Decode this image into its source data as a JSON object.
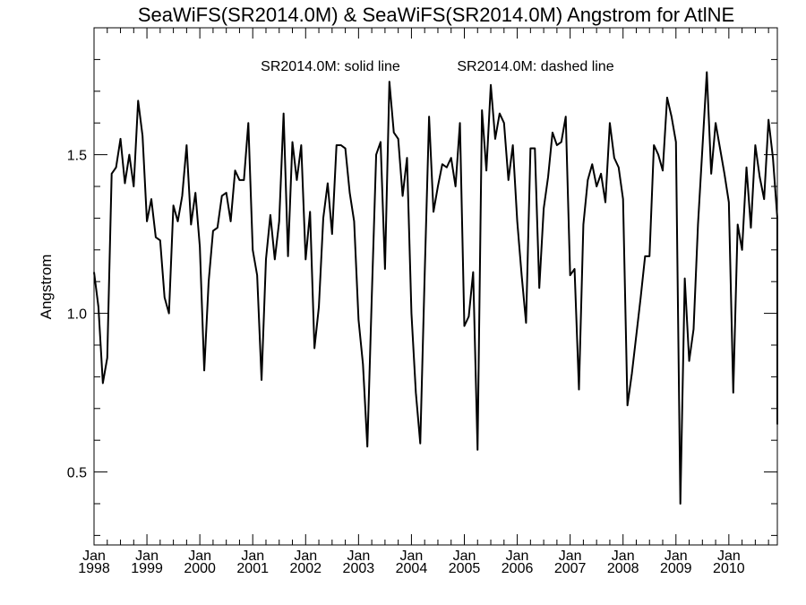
{
  "chart_data": {
    "type": "line",
    "title": "SeaWiFS(SR2014.0M) & SeaWiFS(SR2014.0M)  Angstrom for AtlNE",
    "subtitle_left": "SR2014.0M: solid line",
    "subtitle_right": "SR2014.0M: dashed line",
    "ylabel": "Angstrom",
    "xlabel": "",
    "xlim": [
      "1998-01",
      "2010-12"
    ],
    "ylim": [
      0.27,
      1.9
    ],
    "yticks": [
      0.5,
      1.0,
      1.5
    ],
    "ytick_labels": [
      "0.5",
      "1.0",
      "1.5"
    ],
    "xticks": [
      {
        "month": "Jan",
        "year": "1998"
      },
      {
        "month": "Jan",
        "year": "1999"
      },
      {
        "month": "Jan",
        "year": "2000"
      },
      {
        "month": "Jan",
        "year": "2001"
      },
      {
        "month": "Jan",
        "year": "2002"
      },
      {
        "month": "Jan",
        "year": "2003"
      },
      {
        "month": "Jan",
        "year": "2004"
      },
      {
        "month": "Jan",
        "year": "2005"
      },
      {
        "month": "Jan",
        "year": "2006"
      },
      {
        "month": "Jan",
        "year": "2007"
      },
      {
        "month": "Jan",
        "year": "2008"
      },
      {
        "month": "Jan",
        "year": "2009"
      },
      {
        "month": "Jan",
        "year": "2010"
      }
    ],
    "grid": false,
    "series": [
      {
        "line_style": "solid",
        "color": "#000000",
        "points": [
          [
            "1998-01",
            1.13
          ],
          [
            "1998-02",
            1.02
          ],
          [
            "1998-03",
            0.78
          ],
          [
            "1998-04",
            0.86
          ],
          [
            "1998-05",
            1.44
          ],
          [
            "1998-06",
            1.46
          ],
          [
            "1998-07",
            1.55
          ],
          [
            "1998-08",
            1.41
          ],
          [
            "1998-09",
            1.5
          ],
          [
            "1998-10",
            1.4
          ],
          [
            "1998-11",
            1.67
          ],
          [
            "1998-12",
            1.56
          ],
          [
            "1999-01",
            1.29
          ],
          [
            "1999-02",
            1.36
          ],
          [
            "1999-03",
            1.24
          ],
          [
            "1999-04",
            1.23
          ],
          [
            "1999-05",
            1.05
          ],
          [
            "1999-06",
            1.0
          ],
          [
            "1999-07",
            1.34
          ],
          [
            "1999-08",
            1.29
          ],
          [
            "1999-09",
            1.37
          ],
          [
            "1999-10",
            1.53
          ],
          [
            "1999-11",
            1.28
          ],
          [
            "1999-12",
            1.38
          ],
          [
            "2000-01",
            1.21
          ],
          [
            "2000-02",
            0.82
          ],
          [
            "2000-03",
            1.1
          ],
          [
            "2000-04",
            1.26
          ],
          [
            "2000-05",
            1.27
          ],
          [
            "2000-06",
            1.37
          ],
          [
            "2000-07",
            1.38
          ],
          [
            "2000-08",
            1.29
          ],
          [
            "2000-09",
            1.45
          ],
          [
            "2000-10",
            1.42
          ],
          [
            "2000-11",
            1.42
          ],
          [
            "2000-12",
            1.6
          ],
          [
            "2001-01",
            1.2
          ],
          [
            "2001-02",
            1.12
          ],
          [
            "2001-03",
            0.79
          ],
          [
            "2001-04",
            1.17
          ],
          [
            "2001-05",
            1.31
          ],
          [
            "2001-06",
            1.17
          ],
          [
            "2001-07",
            1.29
          ],
          [
            "2001-08",
            1.63
          ],
          [
            "2001-09",
            1.18
          ],
          [
            "2001-10",
            1.54
          ],
          [
            "2001-11",
            1.42
          ],
          [
            "2001-12",
            1.53
          ],
          [
            "2002-01",
            1.17
          ],
          [
            "2002-02",
            1.32
          ],
          [
            "2002-03",
            0.89
          ],
          [
            "2002-04",
            1.02
          ],
          [
            "2002-05",
            1.3
          ],
          [
            "2002-06",
            1.41
          ],
          [
            "2002-07",
            1.25
          ],
          [
            "2002-08",
            1.53
          ],
          [
            "2002-09",
            1.53
          ],
          [
            "2002-10",
            1.52
          ],
          [
            "2002-11",
            1.38
          ],
          [
            "2002-12",
            1.29
          ],
          [
            "2003-01",
            0.98
          ],
          [
            "2003-02",
            0.84
          ],
          [
            "2003-03",
            0.58
          ],
          [
            "2003-04",
            1.05
          ],
          [
            "2003-05",
            1.5
          ],
          [
            "2003-06",
            1.54
          ],
          [
            "2003-07",
            1.14
          ],
          [
            "2003-08",
            1.73
          ],
          [
            "2003-09",
            1.57
          ],
          [
            "2003-10",
            1.55
          ],
          [
            "2003-11",
            1.37
          ],
          [
            "2003-12",
            1.49
          ],
          [
            "2004-01",
            1.0
          ],
          [
            "2004-02",
            0.75
          ],
          [
            "2004-03",
            0.59
          ],
          [
            "2004-04",
            1.12
          ],
          [
            "2004-05",
            1.62
          ],
          [
            "2004-06",
            1.32
          ],
          [
            "2004-07",
            1.4
          ],
          [
            "2004-08",
            1.47
          ],
          [
            "2004-09",
            1.46
          ],
          [
            "2004-10",
            1.49
          ],
          [
            "2004-11",
            1.4
          ],
          [
            "2004-12",
            1.6
          ],
          [
            "2005-01",
            0.96
          ],
          [
            "2005-02",
            0.99
          ],
          [
            "2005-03",
            1.13
          ],
          [
            "2005-04",
            0.57
          ],
          [
            "2005-05",
            1.64
          ],
          [
            "2005-06",
            1.45
          ],
          [
            "2005-07",
            1.72
          ],
          [
            "2005-08",
            1.55
          ],
          [
            "2005-09",
            1.63
          ],
          [
            "2005-10",
            1.6
          ],
          [
            "2005-11",
            1.42
          ],
          [
            "2005-12",
            1.53
          ],
          [
            "2006-01",
            1.29
          ],
          [
            "2006-02",
            1.12
          ],
          [
            "2006-03",
            0.97
          ],
          [
            "2006-04",
            1.52
          ],
          [
            "2006-05",
            1.52
          ],
          [
            "2006-06",
            1.08
          ],
          [
            "2006-07",
            1.33
          ],
          [
            "2006-08",
            1.43
          ],
          [
            "2006-09",
            1.57
          ],
          [
            "2006-10",
            1.53
          ],
          [
            "2006-11",
            1.54
          ],
          [
            "2006-12",
            1.62
          ],
          [
            "2007-01",
            1.12
          ],
          [
            "2007-02",
            1.14
          ],
          [
            "2007-03",
            0.76
          ],
          [
            "2007-04",
            1.28
          ],
          [
            "2007-05",
            1.42
          ],
          [
            "2007-06",
            1.47
          ],
          [
            "2007-07",
            1.4
          ],
          [
            "2007-08",
            1.44
          ],
          [
            "2007-09",
            1.35
          ],
          [
            "2007-10",
            1.6
          ],
          [
            "2007-11",
            1.49
          ],
          [
            "2007-12",
            1.46
          ],
          [
            "2008-01",
            1.36
          ],
          [
            "2008-02",
            0.71
          ],
          [
            "2008-03",
            0.81
          ],
          [
            "2008-04",
            0.93
          ],
          [
            "2008-05",
            1.05
          ],
          [
            "2008-06",
            1.18
          ],
          [
            "2008-07",
            1.18
          ],
          [
            "2008-08",
            1.53
          ],
          [
            "2008-09",
            1.5
          ],
          [
            "2008-10",
            1.45
          ],
          [
            "2008-11",
            1.68
          ],
          [
            "2008-12",
            1.62
          ],
          [
            "2009-01",
            1.54
          ],
          [
            "2009-02",
            0.4
          ],
          [
            "2009-03",
            1.11
          ],
          [
            "2009-04",
            0.85
          ],
          [
            "2009-05",
            0.95
          ],
          [
            "2009-06",
            1.28
          ],
          [
            "2009-07",
            1.52
          ],
          [
            "2009-08",
            1.76
          ],
          [
            "2009-09",
            1.44
          ],
          [
            "2009-10",
            1.6
          ],
          [
            "2009-11",
            1.52
          ],
          [
            "2009-12",
            1.44
          ],
          [
            "2010-01",
            1.35
          ],
          [
            "2010-02",
            0.75
          ],
          [
            "2010-03",
            1.28
          ],
          [
            "2010-04",
            1.2
          ],
          [
            "2010-05",
            1.46
          ],
          [
            "2010-06",
            1.27
          ],
          [
            "2010-07",
            1.53
          ],
          [
            "2010-08",
            1.43
          ],
          [
            "2010-09",
            1.36
          ],
          [
            "2010-10",
            1.61
          ],
          [
            "2010-11",
            1.49
          ],
          [
            "2010-12",
            1.3
          ]
        ]
      }
    ],
    "series_tail": {
      "line_style": "solid",
      "x": "2010-12",
      "to_value": 0.65,
      "note": ""
    }
  }
}
